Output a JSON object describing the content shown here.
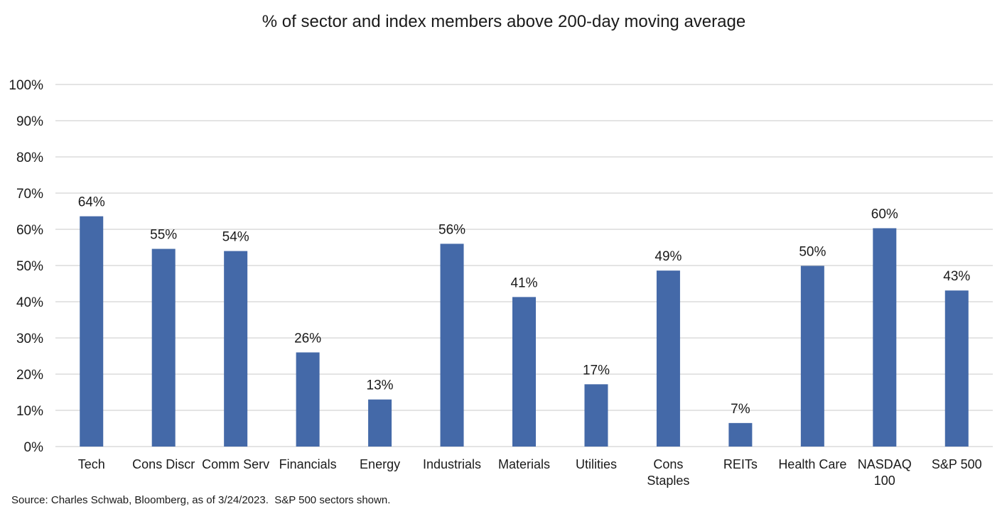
{
  "chart_data": {
    "type": "bar",
    "title": "% of sector and index members above 200-day moving average",
    "xlabel": "",
    "ylabel": "",
    "ylim": [
      0,
      100
    ],
    "yticks": [
      "0%",
      "10%",
      "20%",
      "30%",
      "40%",
      "50%",
      "60%",
      "70%",
      "80%",
      "90%",
      "100%"
    ],
    "grid": true,
    "bar_color": "#4469A8",
    "grid_color": "#C8C8C8",
    "categories": [
      "Tech",
      "Cons Discr",
      "Comm Serv",
      "Financials",
      "Energy",
      "Industrials",
      "Materials",
      "Utilities",
      "Cons Staples",
      "REITs",
      "Health Care",
      "NASDAQ 100",
      "S&P 500"
    ],
    "category_lines": [
      [
        "Tech"
      ],
      [
        "Cons Discr"
      ],
      [
        "Comm Serv"
      ],
      [
        "Financials"
      ],
      [
        "Energy"
      ],
      [
        "Industrials"
      ],
      [
        "Materials"
      ],
      [
        "Utilities"
      ],
      [
        "Cons",
        "Staples"
      ],
      [
        "REITs"
      ],
      [
        "Health Care"
      ],
      [
        "NASDAQ",
        "100"
      ],
      [
        "S&P 500"
      ]
    ],
    "values": [
      63.6,
      54.6,
      54.0,
      26.0,
      13.0,
      56.0,
      41.3,
      17.2,
      48.6,
      6.5,
      49.9,
      60.3,
      43.1
    ],
    "data_labels": [
      "64%",
      "55%",
      "54%",
      "26%",
      "13%",
      "56%",
      "41%",
      "17%",
      "49%",
      "7%",
      "50%",
      "60%",
      "43%"
    ]
  },
  "footer": {
    "source": "Source: Charles Schwab, Bloomberg, as of 3/24/2023.  S&P 500 sectors shown."
  }
}
